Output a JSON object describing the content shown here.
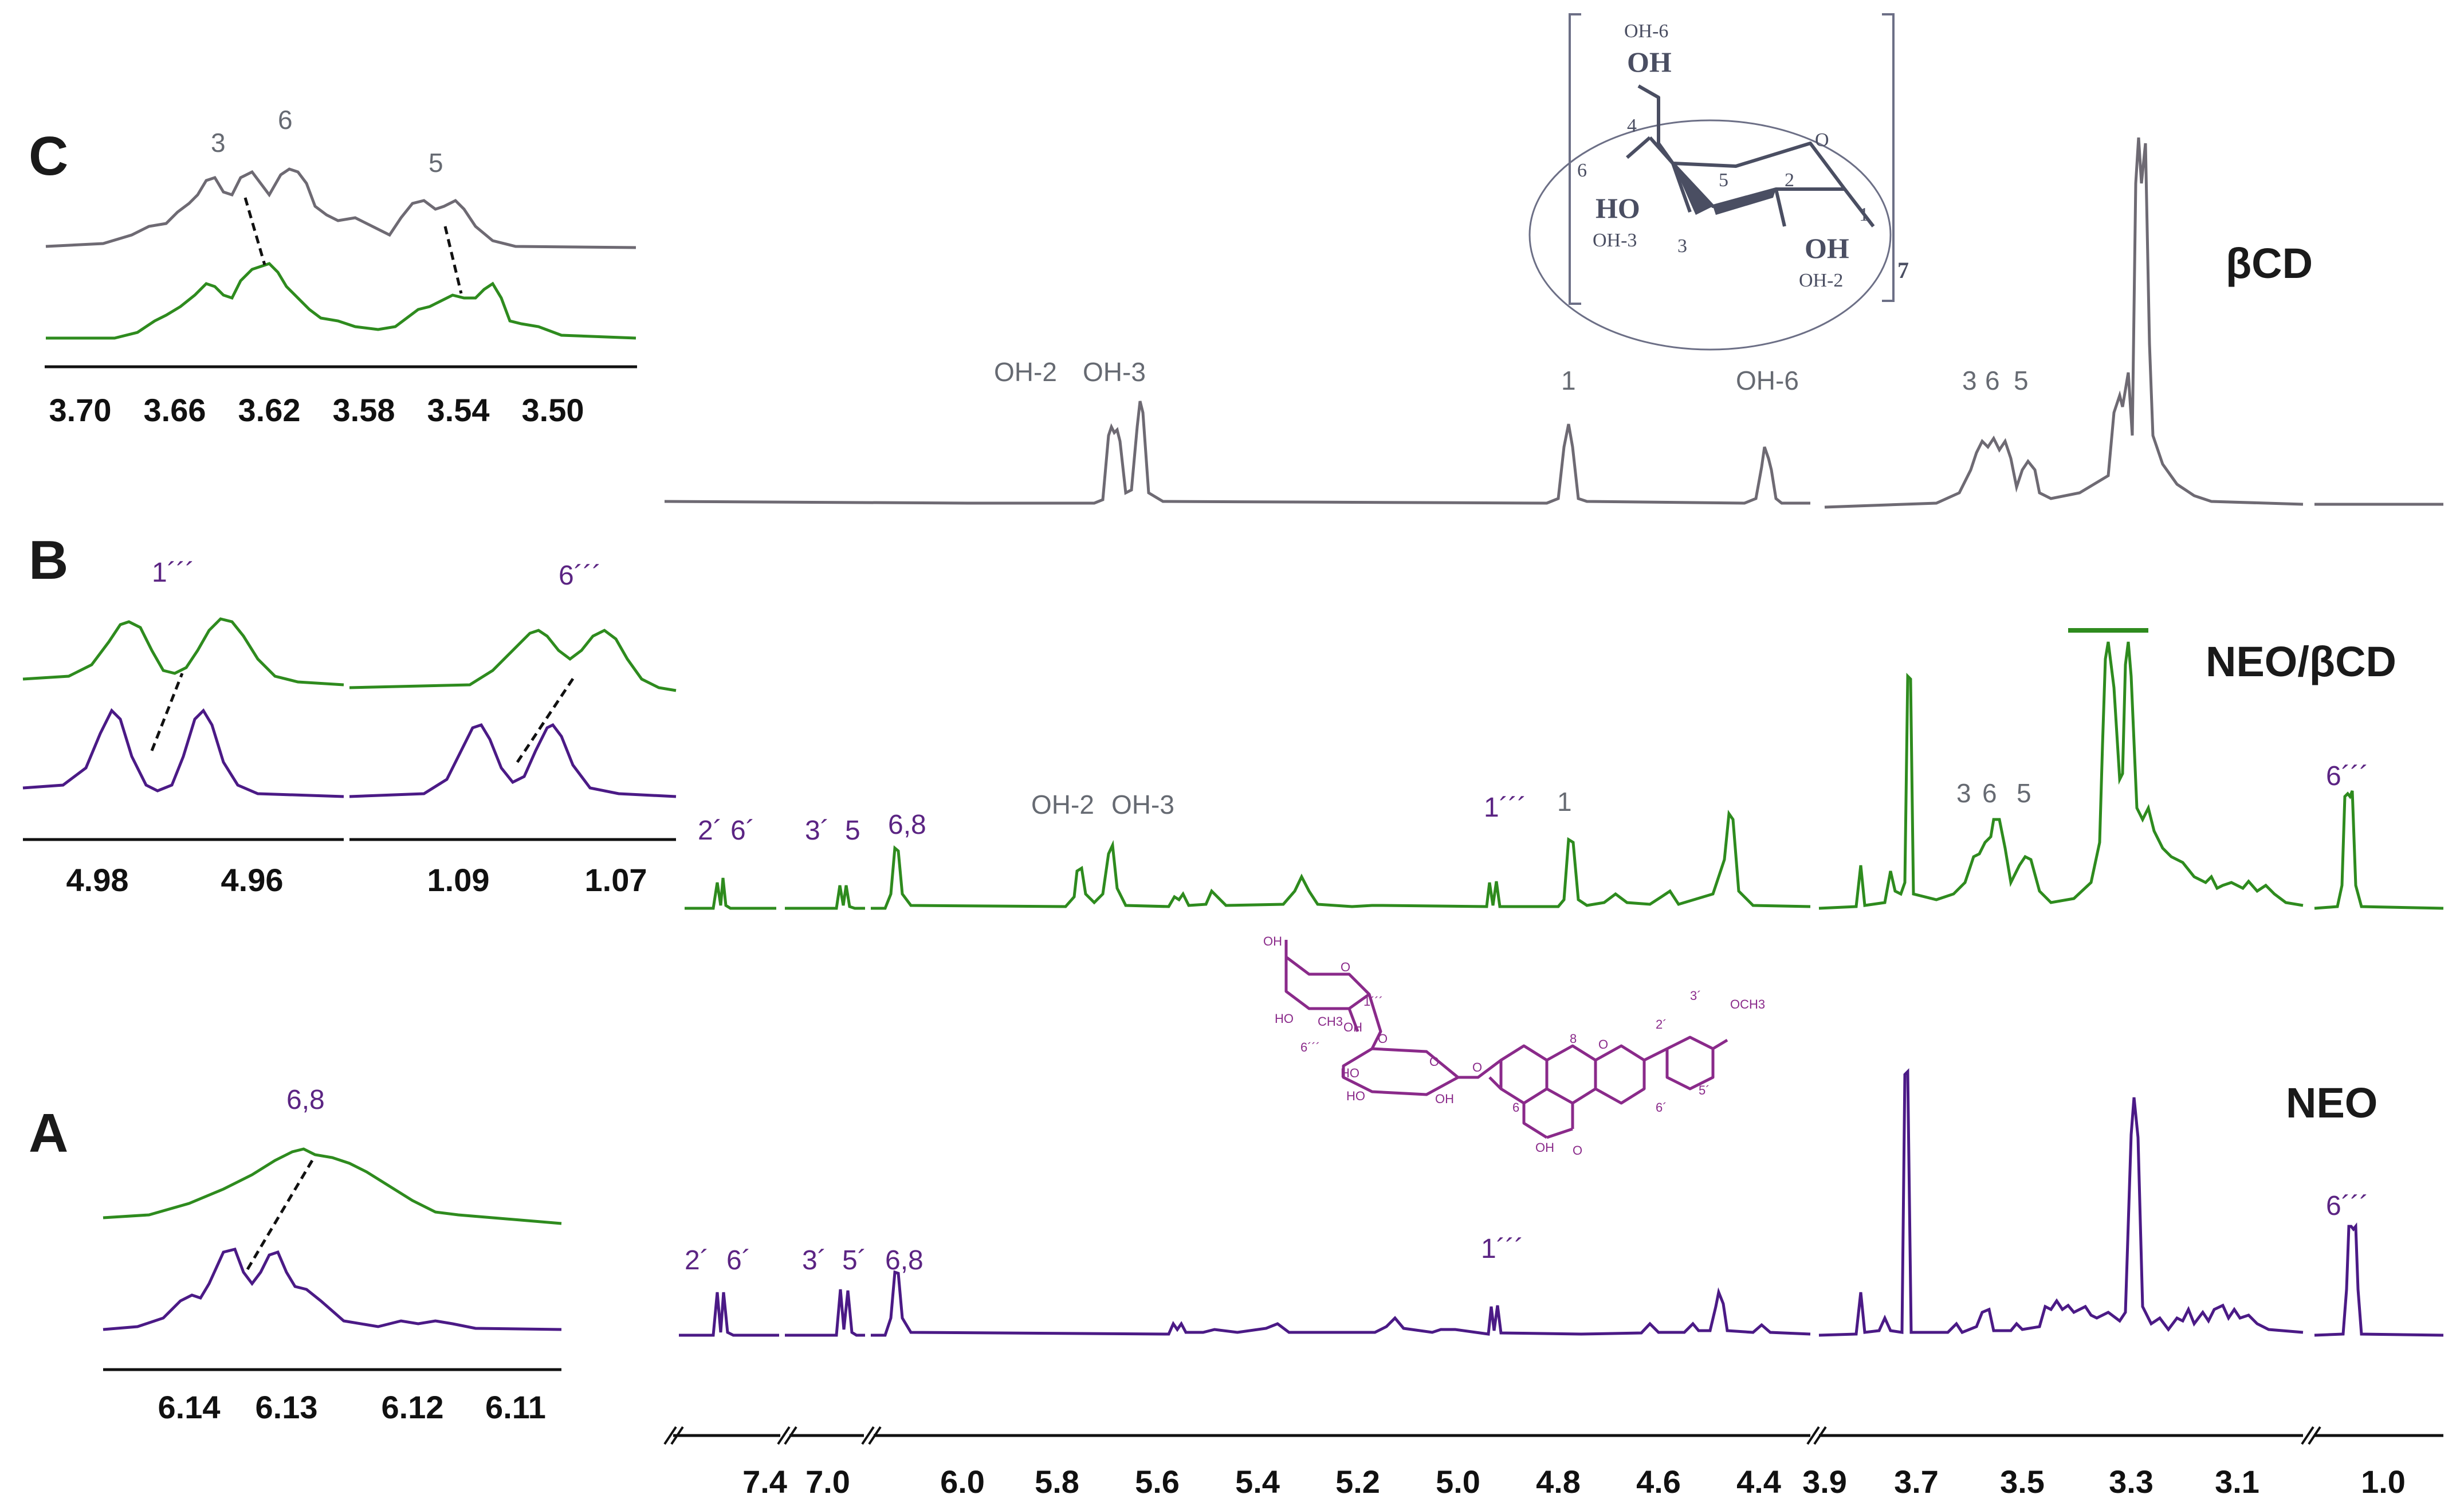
{
  "colors": {
    "bcd": "#6e6a73",
    "complex": "#2e8b1e",
    "neo": "#4b1a86",
    "axis": "#111111",
    "struct_gray": "#4a4e62",
    "struct_purple": "#8a2a8a"
  },
  "panels": {
    "C": {
      "letter": "C",
      "peaks": [
        "3",
        "6",
        "5"
      ],
      "ticks": [
        "3.70",
        "3.66",
        "3.62",
        "3.58",
        "3.54",
        "3.50"
      ]
    },
    "B": {
      "letter": "B",
      "peaks": [
        "1´´´",
        "6´´´"
      ],
      "ticks_left": [
        "4.98",
        "4.96"
      ],
      "ticks_right": [
        "1.09",
        "1.07"
      ]
    },
    "A": {
      "letter": "A",
      "peaks": [
        "6,8"
      ],
      "ticks": [
        "6.14",
        "6.13",
        "6.12",
        "6.11"
      ]
    }
  },
  "series_names": {
    "bcd": "βCD",
    "complex": "NEO/βCD",
    "neo": "NEO"
  },
  "main_peak_labels": {
    "bcd": [
      "OH-2",
      "OH-3",
      "1",
      "OH-6",
      "3",
      "6",
      "5"
    ],
    "complex": [
      "2´",
      "6´",
      "3´",
      "5",
      "6,8",
      "OH-2",
      "OH-3",
      "1´´´",
      "1",
      "3",
      "6",
      "5",
      "6´´´"
    ],
    "neo": [
      "2´",
      "6´",
      "3´",
      "5´",
      "6,8",
      "1´´´",
      "6´´´"
    ]
  },
  "main_axis_ticks": [
    "7.4",
    "7.0",
    "6.0",
    "5.8",
    "5.6",
    "5.4",
    "5.2",
    "5.0",
    "4.8",
    "4.6",
    "4.4",
    "3.9",
    "3.7",
    "3.5",
    "3.3",
    "3.1",
    "1.0"
  ],
  "structure_bcd": {
    "labels": [
      "OH-6",
      "OH",
      "4",
      "6",
      "5",
      "O",
      "2",
      "1",
      "HO",
      "OH-3",
      "3",
      "OH",
      "OH-2",
      "7"
    ]
  },
  "structure_neo": {
    "labels": [
      "OH",
      "O",
      "1´´´",
      "CH3",
      "OH",
      "HO",
      "6´´´",
      "O",
      "HO",
      "O",
      "HO",
      "OH",
      "O",
      "8",
      "O",
      "2´",
      "3´",
      "OCH3",
      "6",
      "6´",
      "5´",
      "OH",
      "O"
    ]
  },
  "chart_data": {
    "type": "line",
    "title": "",
    "xlabel": "",
    "ylabel": "",
    "x_unit_axis": "ppm",
    "x_reversed": true,
    "series": [
      {
        "name": "βCD",
        "peaks_ppm": [
          5.72,
          5.67,
          4.83,
          4.48,
          3.63,
          3.61,
          3.55,
          3.33
        ]
      },
      {
        "name": "NEO/βCD",
        "peaks_ppm": [
          7.47,
          7.45,
          6.99,
          6.97,
          6.13,
          5.75,
          5.69,
          4.97,
          4.83,
          4.47,
          3.76,
          3.63,
          3.6,
          3.55,
          3.35,
          1.07
        ]
      },
      {
        "name": "NEO",
        "peaks_ppm": [
          7.47,
          7.45,
          6.99,
          6.97,
          6.13,
          4.97,
          4.5,
          3.76,
          3.63,
          3.33,
          1.08
        ]
      }
    ],
    "insets": [
      {
        "panel": "C",
        "xlim": [
          3.7,
          3.49
        ],
        "marked_peaks": [
          "3",
          "6",
          "5"
        ]
      },
      {
        "panel": "B",
        "xlim": [
          4.985,
          4.955
        ],
        "marked_peaks": [
          "1´´´"
        ]
      },
      {
        "panel": "B",
        "xlim": [
          1.095,
          1.065
        ],
        "marked_peaks": [
          "6´´´"
        ]
      },
      {
        "panel": "A",
        "xlim": [
          6.145,
          6.105
        ],
        "marked_peaks": [
          "6,8"
        ]
      }
    ]
  }
}
